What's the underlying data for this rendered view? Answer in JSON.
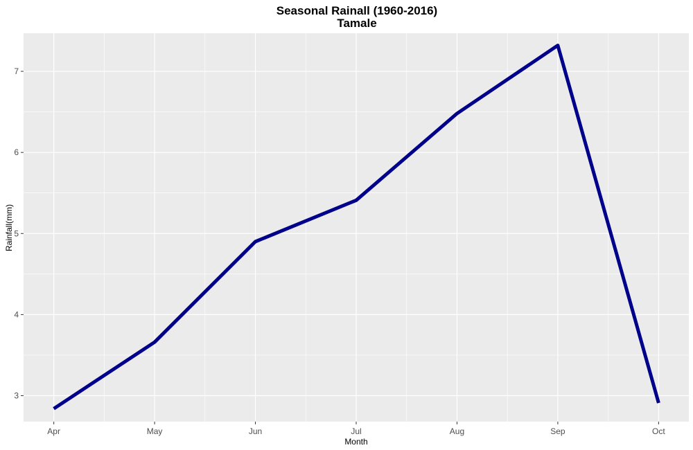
{
  "chart_data": {
    "type": "line",
    "title": "Seasonal Rainall (1960-2016)",
    "subtitle": "Tamale",
    "xlabel": "Month",
    "ylabel": "Rainfall(mm)",
    "categories": [
      "Apr",
      "May",
      "Jun",
      "Jul",
      "Aug",
      "Sep",
      "Oct"
    ],
    "series": [
      {
        "values": [
          2.84,
          3.66,
          4.9,
          5.41,
          6.48,
          7.32,
          2.91
        ]
      }
    ],
    "y_ticks": [
      3,
      4,
      5,
      6,
      7
    ],
    "ylim": [
      2.68,
      7.47
    ],
    "grid": true,
    "legend": "none",
    "colors": {
      "panel": "#ebebeb",
      "grid": "#ffffff",
      "line": "#00008b"
    }
  }
}
